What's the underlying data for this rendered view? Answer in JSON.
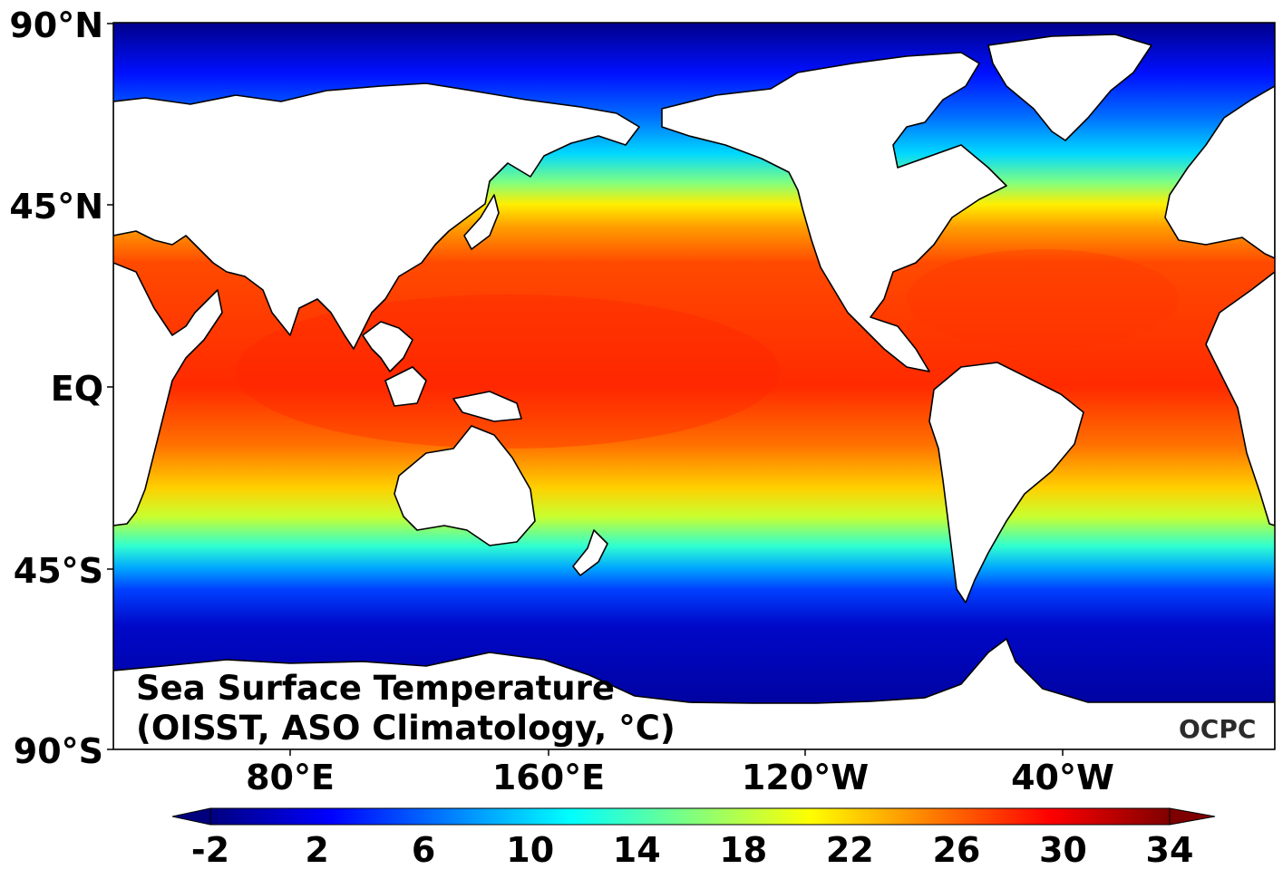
{
  "map": {
    "title_line1": "Sea Surface Temperature",
    "title_line2": "(OISST, ASO Climatology, °C)",
    "logo_text": "OCPC",
    "lat_labels": [
      "90°N",
      "45°N",
      "EQ",
      "45°S",
      "90°S"
    ],
    "lon_labels": [
      "80°E",
      "160°E",
      "120°W",
      "40°W"
    ],
    "colormap": "jet",
    "land_color": "#ffffff",
    "coast_color": "#000000"
  },
  "colorbar": {
    "ticks": [
      "-2",
      "2",
      "6",
      "10",
      "14",
      "18",
      "22",
      "26",
      "30",
      "34"
    ],
    "min": -2,
    "max": 34,
    "extend": "both",
    "colors": [
      "#00007f",
      "#0000ff",
      "#007fff",
      "#00ffff",
      "#7fff7f",
      "#ffff00",
      "#ff7f00",
      "#ff0000",
      "#7f0000"
    ]
  }
}
